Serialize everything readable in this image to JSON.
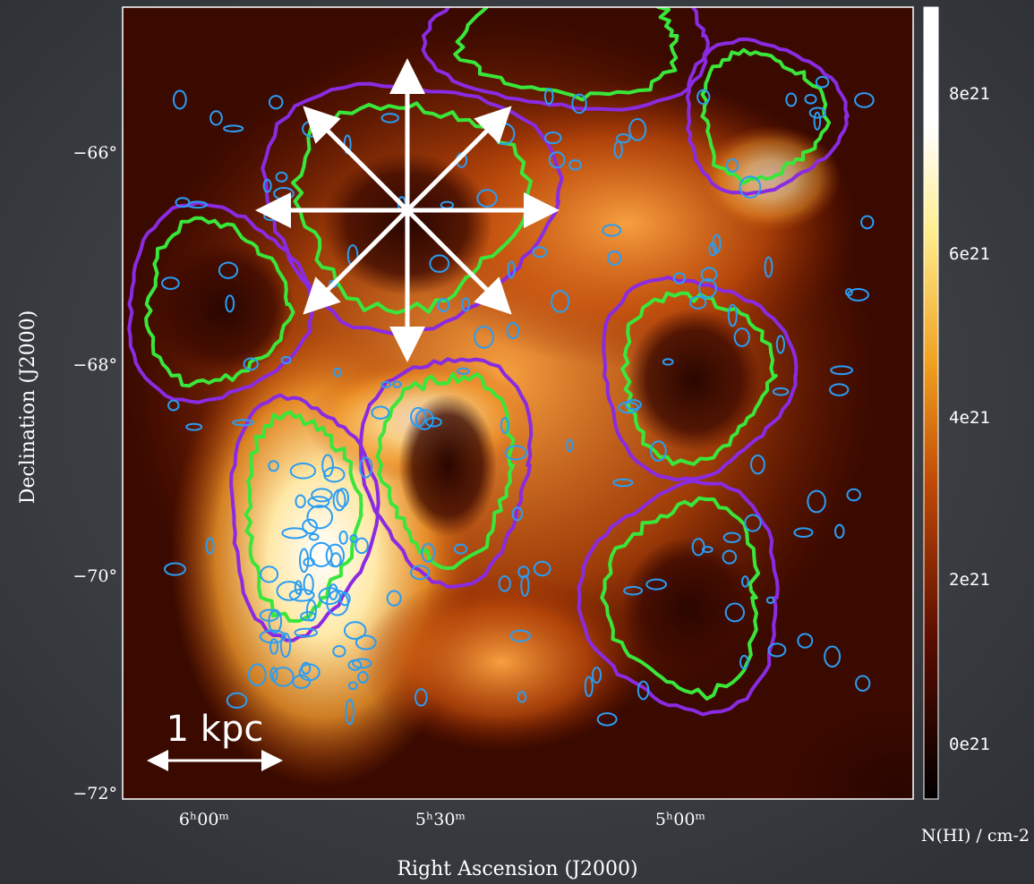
{
  "x_axis": {
    "label": "Right Ascension (J2000)",
    "ticks": [
      "6ʰ00ᵐ",
      "5ʰ30ᵐ",
      "5ʰ00ᵐ"
    ]
  },
  "y_axis": {
    "label": "Declination (J2000)",
    "ticks": [
      "−66°",
      "−68°",
      "−70°",
      "−72°"
    ]
  },
  "colorbar": {
    "label": "N(HI) / cm-2",
    "ticks": [
      "8e21",
      "6e21",
      "4e21",
      "2e21",
      "0e21"
    ]
  },
  "scale_bar": "1 kpc"
}
